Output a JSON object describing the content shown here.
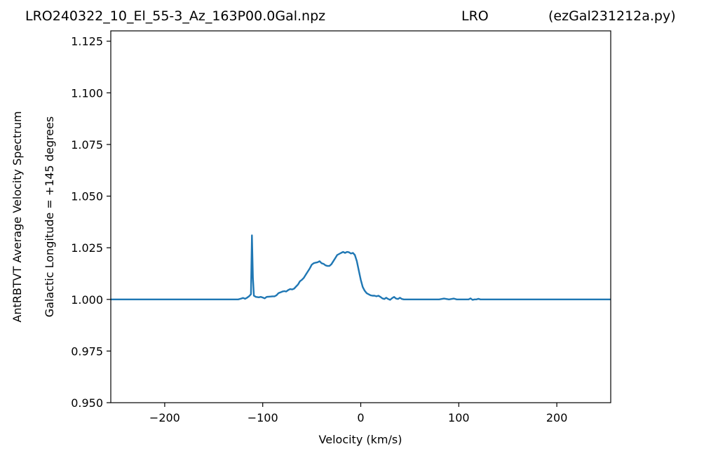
{
  "header": {
    "left": "LRO240322_10_El_55-3_Az_163P00.0Gal.npz",
    "center": "LRO",
    "right": "(ezGal231212a.py)"
  },
  "chart_data": {
    "type": "line",
    "xlabel": "Velocity (km/s)",
    "ylabel": "AntRBTVT Average Velocity Spectrum",
    "ylabel2": "Galactic Longitude = +145 degrees",
    "xlim": [
      -255,
      255
    ],
    "ylim": [
      0.95,
      1.13
    ],
    "x_ticks": [
      -200,
      -100,
      0,
      100,
      200
    ],
    "x_tick_labels": [
      "−200",
      "−100",
      "0",
      "100",
      "200"
    ],
    "y_ticks": [
      0.95,
      0.975,
      1.0,
      1.025,
      1.05,
      1.075,
      1.1,
      1.125
    ],
    "y_tick_labels": [
      "0.950",
      "0.975",
      "1.000",
      "1.025",
      "1.050",
      "1.075",
      "1.100",
      "1.125"
    ],
    "grid": false,
    "line_color": "#1f77b4",
    "series": [
      {
        "x": [
          -255,
          -125,
          -122,
          -120,
          -118,
          -116,
          -114,
          -112,
          -111,
          -110,
          -109,
          -107,
          -104,
          -102,
          -100,
          -98,
          -96,
          -94,
          -92,
          -90,
          -88,
          -86,
          -84,
          -82,
          -80,
          -78,
          -76,
          -74,
          -72,
          -70,
          -68,
          -66,
          -64,
          -62,
          -60,
          -58,
          -56,
          -54,
          -52,
          -50,
          -48,
          -46,
          -44,
          -42,
          -40,
          -38,
          -36,
          -34,
          -32,
          -30,
          -28,
          -26,
          -24,
          -22,
          -20,
          -18,
          -16,
          -14,
          -12,
          -10,
          -8,
          -6,
          -4,
          -2,
          0,
          2,
          4,
          6,
          8,
          10,
          12,
          14,
          16,
          18,
          20,
          22,
          24,
          26,
          28,
          30,
          32,
          34,
          36,
          38,
          40,
          42,
          44,
          46,
          48,
          50,
          80,
          85,
          90,
          95,
          98,
          100,
          110,
          112,
          114,
          116,
          118,
          120,
          122,
          255
        ],
        "y": [
          1.0,
          1.0,
          1.0004,
          1.0007,
          1.0003,
          1.0008,
          1.0015,
          1.0025,
          1.031,
          1.0105,
          1.0018,
          1.0012,
          1.001,
          1.0012,
          1.0009,
          1.0005,
          1.0012,
          1.0013,
          1.0014,
          1.0015,
          1.0015,
          1.002,
          1.003,
          1.0034,
          1.0038,
          1.004,
          1.0038,
          1.0045,
          1.005,
          1.0048,
          1.0052,
          1.0062,
          1.0072,
          1.0088,
          1.0095,
          1.0105,
          1.012,
          1.0135,
          1.015,
          1.0168,
          1.0175,
          1.0178,
          1.018,
          1.0185,
          1.0175,
          1.0172,
          1.0165,
          1.0162,
          1.0162,
          1.017,
          1.0185,
          1.02,
          1.0215,
          1.022,
          1.0225,
          1.023,
          1.0225,
          1.023,
          1.0228,
          1.0222,
          1.0225,
          1.0215,
          1.0185,
          1.014,
          1.0095,
          1.006,
          1.0042,
          1.003,
          1.0025,
          1.002,
          1.0018,
          1.0018,
          1.0015,
          1.0018,
          1.0012,
          1.0005,
          1.0002,
          1.0008,
          1.0002,
          0.9998,
          1.0006,
          1.0012,
          1.0004,
          1.0002,
          1.0008,
          1.0002,
          1.0,
          1.0,
          1.0,
          1.0,
          1.0,
          1.0004,
          1.0,
          1.0004,
          1.0,
          1.0,
          1.0,
          1.0005,
          0.9998,
          1.0,
          1.0,
          1.0003,
          1.0,
          1.0
        ]
      }
    ]
  }
}
